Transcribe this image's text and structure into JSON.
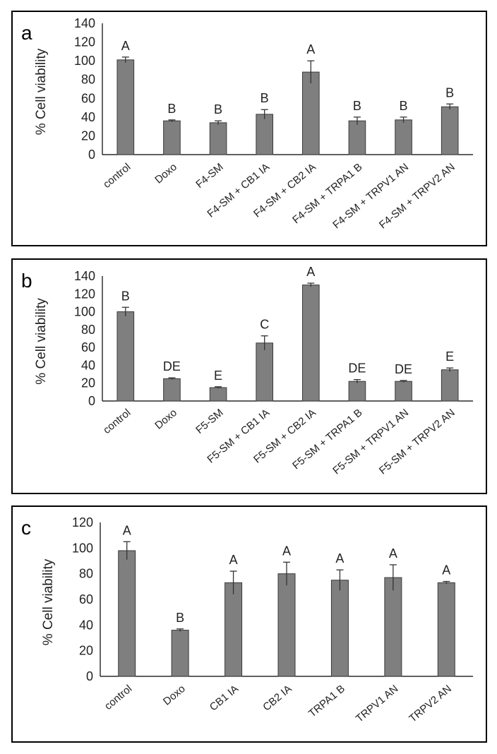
{
  "colors": {
    "bar": "#7f7f7f",
    "bar_outline": "#3a3a3a",
    "axis": "#000000",
    "text": "#222222",
    "border": "#000000"
  },
  "chart_data": [
    {
      "panel": "a",
      "type": "bar",
      "ylabel": "% Cell viability",
      "ylim": [
        0,
        140
      ],
      "yticks": [
        0,
        20,
        40,
        60,
        80,
        100,
        120,
        140
      ],
      "grid": false,
      "categories": [
        "control",
        "Doxo",
        "F4-SM",
        "F4-SM + CB1 IA",
        "F4-SM + CB2 IA",
        "F4-SM + TRPA1 B",
        "F4-SM + TRPV1 AN",
        "F4-SM + TRPV2 AN"
      ],
      "values": [
        101,
        36,
        34,
        43,
        88,
        36,
        37,
        51
      ],
      "errors": [
        3,
        1,
        2,
        5,
        12,
        4,
        3,
        3
      ],
      "letters": [
        "A",
        "B",
        "B",
        "B",
        "A",
        "B",
        "B",
        "B"
      ]
    },
    {
      "panel": "b",
      "type": "bar",
      "ylabel": "% Cell viability",
      "ylim": [
        0,
        140
      ],
      "yticks": [
        0,
        20,
        40,
        60,
        80,
        100,
        120,
        140
      ],
      "grid": false,
      "categories": [
        "control",
        "Doxo",
        "F5-SM",
        "F5-SM + CB1 IA",
        "F5-SM + CB2 IA",
        "F5-SM + TRPA1 B",
        "F5-SM + TRPV1 AN",
        "F5-SM + TRPV2 AN"
      ],
      "values": [
        100,
        25,
        15,
        65,
        130,
        22,
        22,
        35
      ],
      "errors": [
        5,
        1,
        1,
        8,
        2,
        2,
        1,
        2
      ],
      "letters": [
        "B",
        "DE",
        "E",
        "C",
        "A",
        "DE",
        "DE",
        "E"
      ]
    },
    {
      "panel": "c",
      "type": "bar",
      "ylabel": "% Cell viability",
      "ylim": [
        0,
        120
      ],
      "yticks": [
        0,
        20,
        40,
        60,
        80,
        100,
        120
      ],
      "grid": false,
      "categories": [
        "control",
        "Doxo",
        "CB1 IA",
        "CB2 IA",
        "TRPA1 B",
        "TRPV1 AN",
        "TRPV2 AN"
      ],
      "values": [
        98,
        36,
        73,
        80,
        75,
        77,
        73
      ],
      "errors": [
        7,
        1,
        9,
        9,
        8,
        10,
        1
      ],
      "letters": [
        "A",
        "B",
        "A",
        "A",
        "A",
        "A",
        "A"
      ]
    }
  ]
}
